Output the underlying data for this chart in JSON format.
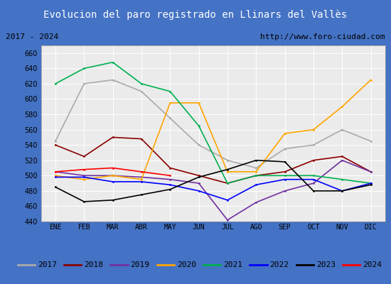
{
  "title": "Evolucion del paro registrado en Llinars del Vallès",
  "subtitle_left": "2017 - 2024",
  "subtitle_right": "http://www.foro-ciudad.com",
  "title_bg": "#4472c4",
  "title_color": "white",
  "xlabel_months": [
    "ENE",
    "FEB",
    "MAR",
    "ABR",
    "MAY",
    "JUN",
    "JUL",
    "AGO",
    "SEP",
    "OCT",
    "NOV",
    "DIC"
  ],
  "ylim": [
    440,
    670
  ],
  "yticks": [
    440,
    460,
    480,
    500,
    520,
    540,
    560,
    580,
    600,
    620,
    640,
    660
  ],
  "series": {
    "2017": {
      "color": "#aaaaaa",
      "data": [
        545,
        620,
        625,
        610,
        575,
        540,
        520,
        510,
        535,
        540,
        560,
        545
      ]
    },
    "2018": {
      "color": "#8b0000",
      "data": [
        540,
        525,
        550,
        548,
        510,
        500,
        490,
        500,
        505,
        520,
        525,
        505
      ]
    },
    "2019": {
      "color": "#7030a0",
      "data": [
        505,
        500,
        500,
        498,
        495,
        490,
        442,
        465,
        480,
        490,
        520,
        505
      ]
    },
    "2020": {
      "color": "#ffa500",
      "data": [
        500,
        495,
        500,
        495,
        595,
        595,
        505,
        505,
        555,
        560,
        590,
        625
      ]
    },
    "2021": {
      "color": "#00b050",
      "data": [
        620,
        640,
        648,
        620,
        610,
        565,
        490,
        500,
        500,
        500,
        495,
        490
      ]
    },
    "2022": {
      "color": "#0000ff",
      "data": [
        498,
        498,
        492,
        492,
        488,
        480,
        468,
        488,
        495,
        495,
        480,
        490
      ]
    },
    "2023": {
      "color": "#000000",
      "data": [
        485,
        466,
        468,
        475,
        482,
        498,
        508,
        520,
        518,
        480,
        480,
        488
      ]
    },
    "2024": {
      "color": "#ff0000",
      "data": [
        505,
        508,
        510,
        505,
        500,
        null,
        null,
        null,
        null,
        null,
        null,
        null
      ]
    }
  }
}
